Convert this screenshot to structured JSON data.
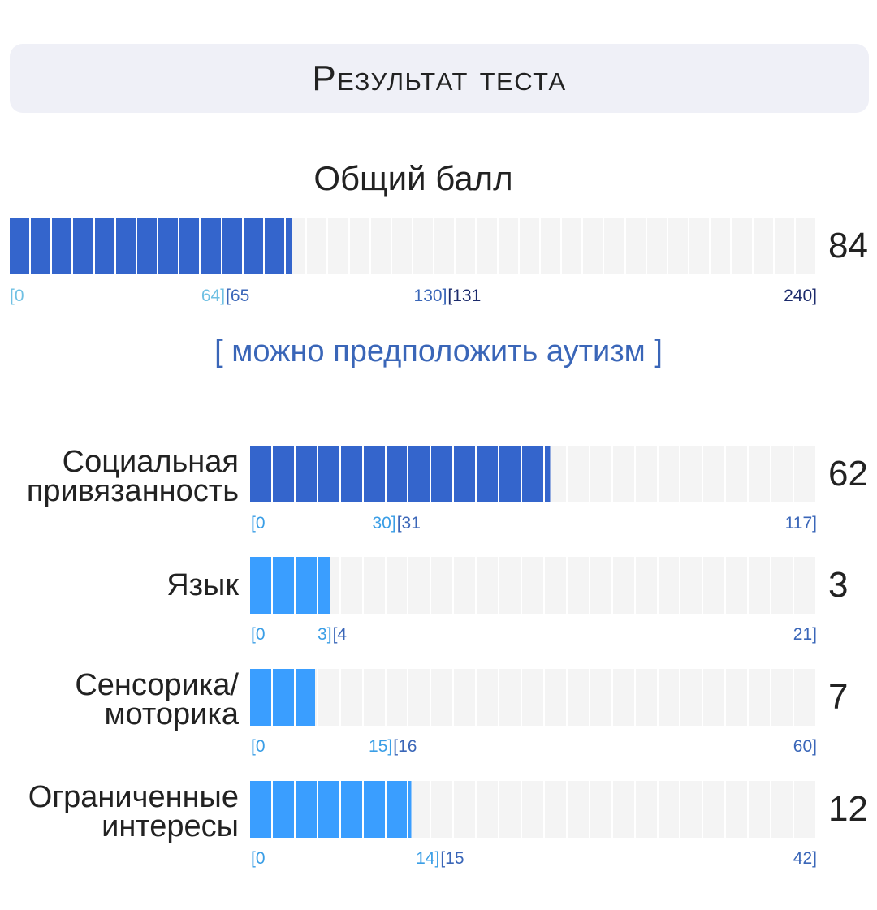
{
  "header": {
    "title": "Результат теста"
  },
  "total": {
    "label": "Общий балл",
    "score": "84",
    "value": 84,
    "min": 0,
    "max": 240,
    "cells": 38,
    "fill_color": "#3465cc",
    "ranges": [
      {
        "start": "[0",
        "end": "64]",
        "color": "#6fc0e3"
      },
      {
        "start": "[65",
        "end": "130]",
        "color": "#3a66b8"
      },
      {
        "start": "[131",
        "end": "240]",
        "color": "#1b2a6b"
      }
    ],
    "range_bounds": [
      0,
      64,
      130,
      240
    ]
  },
  "verdict": "[ можно предположить аутизм ]",
  "categories": [
    {
      "label_line1": "Социальная",
      "label_line2": "привязанность",
      "score": "62",
      "value": 62,
      "max": 117,
      "cells": 25,
      "fill_color": "#3465cc",
      "ranges": [
        {
          "start": "[0",
          "end": "30]",
          "color": "#3a9ee6"
        },
        {
          "start": "[31",
          "end": "117]",
          "color": "#3a66b8"
        }
      ],
      "range_bounds": [
        0,
        30,
        117
      ]
    },
    {
      "label_line1": "Язык",
      "label_line2": "",
      "score": "3",
      "value": 3,
      "max": 21,
      "cells": 25,
      "fill_color": "#3a9eff",
      "ranges": [
        {
          "start": "[0",
          "end": "3]",
          "color": "#3a9ee6"
        },
        {
          "start": "[4",
          "end": "21]",
          "color": "#3a66b8"
        }
      ],
      "range_bounds": [
        0,
        3,
        21
      ]
    },
    {
      "label_line1": "Сенсорика/",
      "label_line2": "моторика",
      "score": "7",
      "value": 7,
      "max": 60,
      "cells": 25,
      "fill_color": "#3a9eff",
      "ranges": [
        {
          "start": "[0",
          "end": "15]",
          "color": "#3a9ee6"
        },
        {
          "start": "[16",
          "end": "60]",
          "color": "#3a66b8"
        }
      ],
      "range_bounds": [
        0,
        15,
        60
      ]
    },
    {
      "label_line1": "Ограниченные",
      "label_line2": "интересы",
      "score": "12",
      "value": 12,
      "max": 42,
      "cells": 25,
      "fill_color": "#3a9eff",
      "ranges": [
        {
          "start": "[0",
          "end": "14]",
          "color": "#3a9ee6"
        },
        {
          "start": "[15",
          "end": "42]",
          "color": "#3a66b8"
        }
      ],
      "range_bounds": [
        0,
        14,
        42
      ]
    }
  ]
}
